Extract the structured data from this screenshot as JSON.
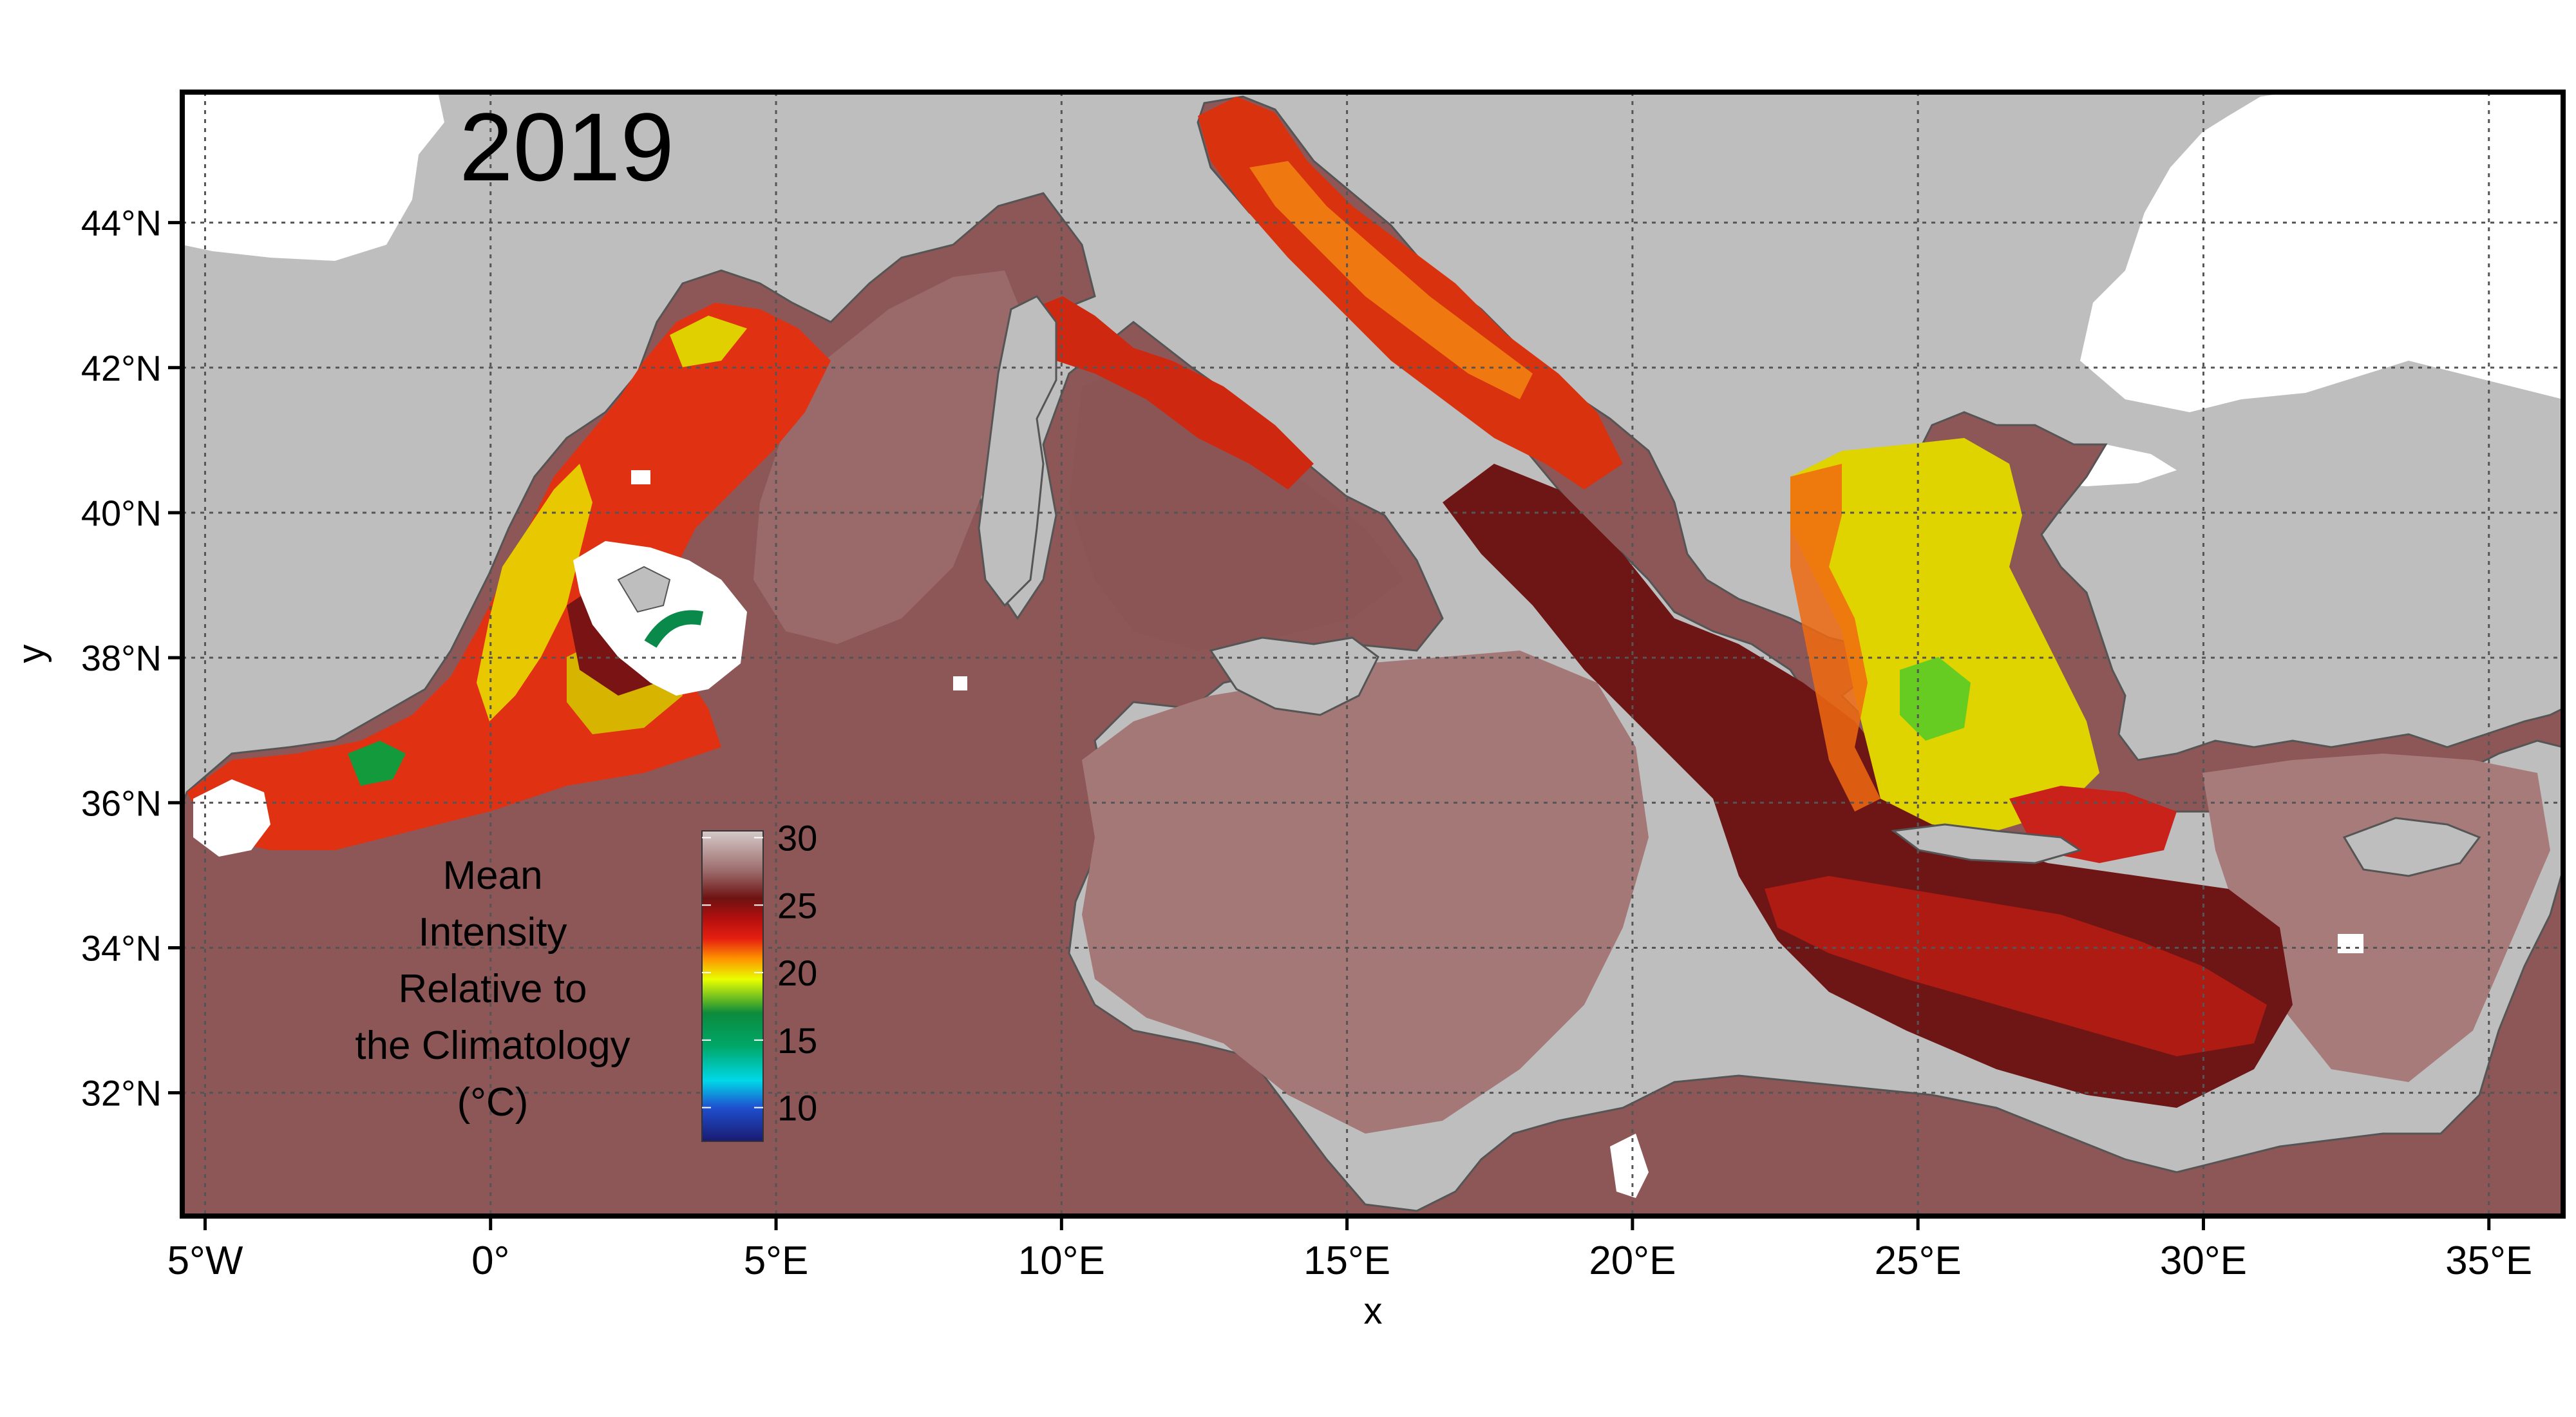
{
  "title": "2019",
  "xlabel": "x",
  "ylabel": "y",
  "x_ticks": [
    {
      "lon": -5,
      "label": "5°W"
    },
    {
      "lon": 0,
      "label": "0°"
    },
    {
      "lon": 5,
      "label": "5°E"
    },
    {
      "lon": 10,
      "label": "10°E"
    },
    {
      "lon": 15,
      "label": "15°E"
    },
    {
      "lon": 20,
      "label": "20°E"
    },
    {
      "lon": 25,
      "label": "25°E"
    },
    {
      "lon": 30,
      "label": "30°E"
    },
    {
      "lon": 35,
      "label": "35°E"
    }
  ],
  "y_ticks": [
    {
      "lat": 32,
      "label": "32°N"
    },
    {
      "lat": 34,
      "label": "34°N"
    },
    {
      "lat": 36,
      "label": "36°N"
    },
    {
      "lat": 38,
      "label": "38°N"
    },
    {
      "lat": 40,
      "label": "40°N"
    },
    {
      "lat": 42,
      "label": "42°N"
    },
    {
      "lat": 44,
      "label": "44°N"
    }
  ],
  "extent": {
    "lon": [
      -5.4,
      36.3
    ],
    "lat": [
      30.3,
      45.8
    ]
  },
  "grid": true,
  "legend": {
    "title_lines": [
      "Mean",
      "Intensity",
      "Relative to",
      "the Climatology",
      "(°C)"
    ],
    "ticks": [
      {
        "value": 30,
        "label": "30"
      },
      {
        "value": 25,
        "label": "25"
      },
      {
        "value": 20,
        "label": "20"
      },
      {
        "value": 15,
        "label": "15"
      },
      {
        "value": 10,
        "label": "10"
      }
    ],
    "range": [
      7.5,
      30.5
    ],
    "placement": "bottom-left inside",
    "color_stops": [
      {
        "value": 7.5,
        "color": "#1a1a70"
      },
      {
        "value": 10,
        "color": "#1f4fd0"
      },
      {
        "value": 12,
        "color": "#00d8e8"
      },
      {
        "value": 14.5,
        "color": "#00a86a"
      },
      {
        "value": 17,
        "color": "#0c8a3c"
      },
      {
        "value": 19.5,
        "color": "#e8ff00"
      },
      {
        "value": 21,
        "color": "#ff9500"
      },
      {
        "value": 22.5,
        "color": "#e52010"
      },
      {
        "value": 24,
        "color": "#b40f0f"
      },
      {
        "value": 25.5,
        "color": "#6e1212"
      },
      {
        "value": 27.5,
        "color": "#9c6a6a"
      },
      {
        "value": 30.5,
        "color": "#d6caca"
      }
    ]
  },
  "colors": {
    "land": "#bebebe",
    "outside_domain": "#ffffff",
    "frame": "#000000",
    "gridline": "#555555"
  }
}
